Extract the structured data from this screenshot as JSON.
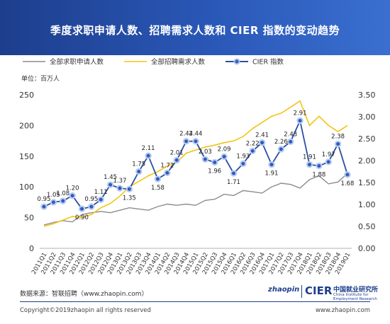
{
  "title": "季度求职申请人数、招聘需求人数和 CIER 指数的变动趋势",
  "chart_data": {
    "type": "line",
    "left_axis": {
      "label": "单位：百万人",
      "min": 0,
      "max": 250,
      "ticks": [
        "0",
        "50",
        "100",
        "150",
        "200",
        "250"
      ]
    },
    "right_axis": {
      "min": 0,
      "max": 3.5,
      "ticks": [
        "0.00",
        "0.50",
        "1.00",
        "1.50",
        "2.00",
        "2.50",
        "3.00",
        "3.50"
      ]
    },
    "categories": [
      "2011Q1",
      "2011Q2",
      "2011Q3",
      "2011Q4",
      "2012Q1",
      "2012Q2",
      "2012Q3",
      "2012Q4",
      "2013Q1",
      "2013Q2",
      "2013Q3",
      "2013Q4",
      "2014Q1",
      "2014Q2",
      "2014Q3",
      "2014Q4",
      "2015Q1",
      "2015Q2",
      "2015Q3",
      "2015Q4",
      "2016Q1",
      "2016Q2",
      "2016Q3",
      "2016Q4",
      "2017Q1",
      "2017Q2",
      "2017Q3",
      "2017Q4",
      "2018Q1",
      "2018Q2",
      "2018Q3",
      "2018Q4",
      "2019Q1"
    ],
    "series": [
      {
        "name": "全部求职申请人数",
        "axis": "left",
        "color": "#8c8c8c",
        "values": [
          38,
          42,
          45,
          43,
          55,
          58,
          60,
          58,
          62,
          66,
          64,
          62,
          68,
          72,
          70,
          72,
          70,
          78,
          80,
          88,
          86,
          94,
          92,
          90,
          100,
          106,
          104,
          98,
          112,
          118,
          105,
          108,
          122
        ]
      },
      {
        "name": "全部招聘需求人数",
        "axis": "left",
        "color": "#f2c318",
        "values": [
          36,
          40,
          46,
          52,
          50,
          55,
          66,
          73,
          85,
          100,
          109,
          118,
          125,
          134,
          140,
          155,
          160,
          165,
          168,
          172,
          175,
          182,
          195,
          205,
          215,
          220,
          230,
          240,
          200,
          215,
          200,
          190,
          200
        ]
      },
      {
        "name": "CIER 指数",
        "axis": "right",
        "color": "#2b4fa3",
        "values": [
          0.95,
          1.05,
          1.08,
          1.2,
          0.9,
          0.95,
          1.11,
          1.45,
          1.37,
          1.35,
          1.75,
          2.11,
          1.58,
          1.72,
          2.01,
          2.44,
          2.44,
          2.03,
          1.96,
          2.09,
          1.71,
          1.93,
          2.22,
          2.41,
          1.91,
          2.26,
          2.43,
          2.91,
          1.91,
          1.88,
          1.97,
          2.38,
          1.68
        ],
        "labels": [
          "0.95",
          "1.05",
          "1.08",
          "1.20",
          "0.90",
          "0.95",
          "1.11",
          "1.45",
          "1.37",
          "1.35",
          "1.75",
          "2.11",
          "1.58",
          "1.72",
          "2.01",
          "2.44",
          "2.44",
          "2.03",
          "1.96",
          "2.09",
          "1.71",
          "1.93",
          "2.22",
          "2.41",
          "1.91",
          "2.26",
          "2.43",
          "2.91",
          "1.91",
          "1.88",
          "1.97",
          "2.38",
          "1.68"
        ]
      }
    ],
    "legend_position": "top",
    "grid": false
  },
  "footer": {
    "source": "数据来源：智联招聘（www.zhaopin.com）",
    "copyright": "Copyright©2019zhaopin all rights reserved",
    "website": "www.zhaopin.com",
    "logo_zhaopin": "zhaopin",
    "logo_cier": "CIER",
    "logo_cier_cn": "中国就业研究所",
    "logo_cier_en": "China Institute for Employment Research"
  },
  "colors": {
    "header": "#1d3e8c",
    "accent": "#2b4fa3"
  }
}
